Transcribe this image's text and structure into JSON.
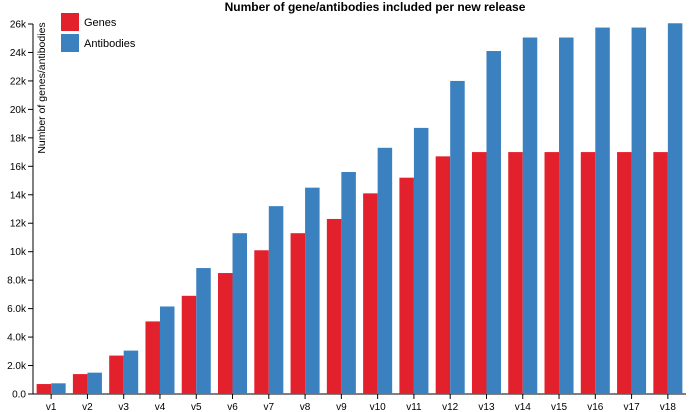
{
  "chart_data": {
    "type": "bar",
    "title": "Number of gene/antibodies included per new release",
    "xlabel": "",
    "ylabel": "Number of genes/antibodies",
    "categories": [
      "v1",
      "v2",
      "v3",
      "v4",
      "v5",
      "v6",
      "v7",
      "v8",
      "v9",
      "v10",
      "v11",
      "v12",
      "v13",
      "v14",
      "v15",
      "v16",
      "v17",
      "v18"
    ],
    "series": [
      {
        "name": "Genes",
        "color": "#e3212d",
        "values": [
          700,
          1400,
          2700,
          5100,
          6900,
          8500,
          10100,
          11300,
          12300,
          14100,
          15200,
          16700,
          17000,
          17000,
          17000,
          17000,
          17000,
          17000
        ]
      },
      {
        "name": "Antibodies",
        "color": "#3b80bf",
        "values": [
          750,
          1500,
          3050,
          6150,
          8850,
          11300,
          13200,
          14500,
          15600,
          17300,
          18700,
          22000,
          24100,
          25050,
          25050,
          25750,
          25750,
          26050
        ]
      }
    ],
    "ylim": [
      0,
      26000
    ],
    "yticks": [
      {
        "value": 0,
        "label": "0.0"
      },
      {
        "value": 2000,
        "label": "2.0k"
      },
      {
        "value": 4000,
        "label": "4.0k"
      },
      {
        "value": 6000,
        "label": "6.0k"
      },
      {
        "value": 8000,
        "label": "8.0k"
      },
      {
        "value": 10000,
        "label": "10k"
      },
      {
        "value": 12000,
        "label": "12k"
      },
      {
        "value": 14000,
        "label": "14k"
      },
      {
        "value": 16000,
        "label": "16k"
      },
      {
        "value": 18000,
        "label": "18k"
      },
      {
        "value": 20000,
        "label": "20k"
      },
      {
        "value": 22000,
        "label": "22k"
      },
      {
        "value": 24000,
        "label": "24k"
      },
      {
        "value": 26000,
        "label": "26k"
      }
    ],
    "grid": false,
    "legend": "top-left"
  }
}
